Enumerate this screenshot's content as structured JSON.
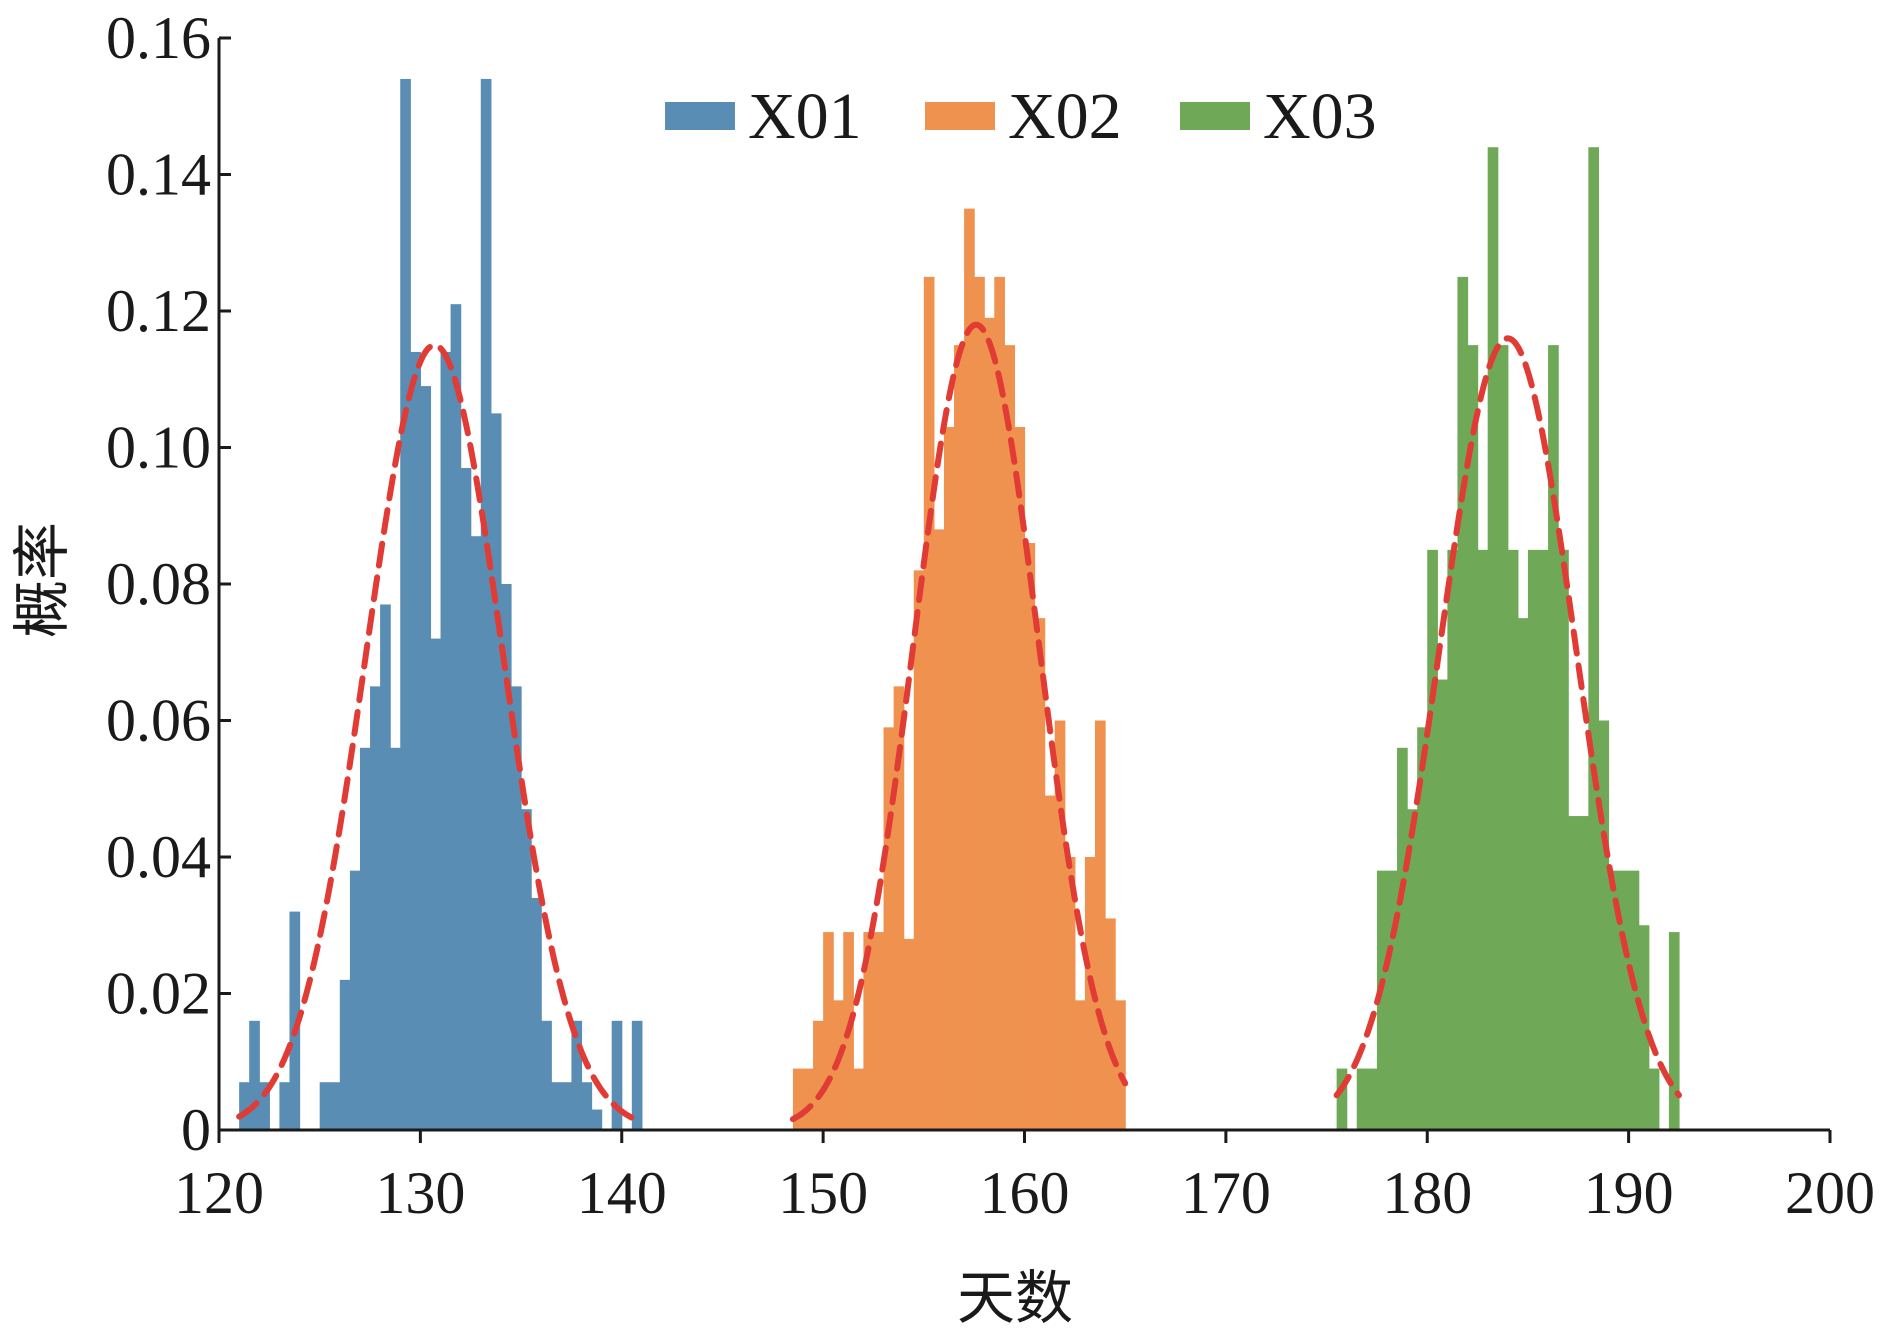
{
  "chart_data": {
    "type": "bar",
    "xlabel": "天数",
    "ylabel": "概率",
    "xlim": [
      120,
      200
    ],
    "ylim": [
      0,
      0.16
    ],
    "x_ticks": [
      120,
      130,
      140,
      150,
      160,
      170,
      180,
      190,
      200
    ],
    "y_ticks": [
      0,
      0.02,
      0.04,
      0.06,
      0.08,
      0.1,
      0.12,
      0.14,
      0.16
    ],
    "y_tick_labels": [
      "0",
      "0.02",
      "0.04",
      "0.06",
      "0.08",
      "0.10",
      "0.12",
      "0.14",
      "0.16"
    ],
    "x_tick_labels": [
      "120",
      "130",
      "140",
      "150",
      "160",
      "170",
      "180",
      "190",
      "200"
    ],
    "bin_width": 0.5,
    "legend_position": "top-center",
    "grid": false,
    "series": [
      {
        "name": "X01",
        "color": "#5a8db3",
        "bin_start": 121,
        "values": [
          0.007,
          0.016,
          0.007,
          0.0,
          0.007,
          0.032,
          0.0,
          0.0,
          0.007,
          0.007,
          0.022,
          0.038,
          0.056,
          0.065,
          0.077,
          0.056,
          0.154,
          0.114,
          0.109,
          0.072,
          0.114,
          0.121,
          0.097,
          0.087,
          0.154,
          0.105,
          0.08,
          0.065,
          0.047,
          0.034,
          0.016,
          0.007,
          0.007,
          0.016,
          0.007,
          0.003,
          0.0,
          0.016,
          0.0,
          0.016
        ],
        "fit_mean": 130.7,
        "fit_sd": 3.4,
        "fit_peak": 0.115
      },
      {
        "name": "X02",
        "color": "#f0924f",
        "bin_start": 148.5,
        "values": [
          0.009,
          0.009,
          0.016,
          0.029,
          0.019,
          0.029,
          0.009,
          0.029,
          0.029,
          0.059,
          0.065,
          0.028,
          0.082,
          0.125,
          0.088,
          0.103,
          0.115,
          0.135,
          0.125,
          0.119,
          0.125,
          0.115,
          0.103,
          0.086,
          0.075,
          0.049,
          0.06,
          0.04,
          0.019,
          0.04,
          0.06,
          0.031,
          0.019
        ],
        "fit_mean": 157.6,
        "fit_sd": 3.1,
        "fit_peak": 0.118
      },
      {
        "name": "X03",
        "color": "#6fa857",
        "bin_start": 175.5,
        "values": [
          0.009,
          0.0,
          0.009,
          0.009,
          0.038,
          0.038,
          0.056,
          0.047,
          0.059,
          0.085,
          0.066,
          0.085,
          0.125,
          0.115,
          0.085,
          0.144,
          0.115,
          0.085,
          0.075,
          0.085,
          0.085,
          0.115,
          0.085,
          0.046,
          0.046,
          0.144,
          0.06,
          0.038,
          0.038,
          0.038,
          0.03,
          0.009,
          0.0,
          0.029
        ],
        "fit_mean": 184.0,
        "fit_sd": 3.4,
        "fit_peak": 0.116
      }
    ],
    "fit_line": {
      "color": "#e03c35",
      "style": "dashed"
    }
  }
}
